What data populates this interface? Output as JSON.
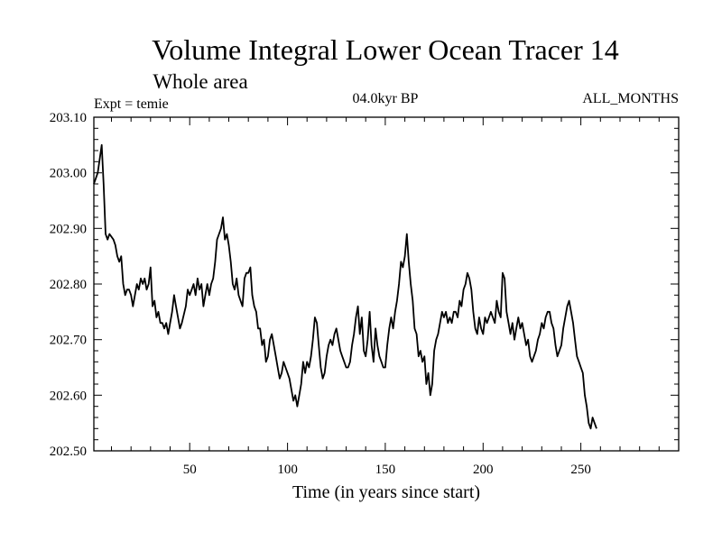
{
  "chart_data": {
    "type": "line",
    "title": "Volume Integral Lower Ocean Tracer 14",
    "subtitle": "Whole area",
    "annotation_left": "Expt = temie",
    "annotation_center": "04.0kyr BP",
    "annotation_right": "ALL_MONTHS",
    "xlabel": "Time (in years since start)",
    "ylabel": "",
    "xlim": [
      1,
      300
    ],
    "ylim": [
      202.5,
      203.1
    ],
    "x_ticks": [
      50,
      100,
      150,
      200,
      250
    ],
    "y_ticks": [
      "202.50",
      "202.60",
      "202.70",
      "202.80",
      "202.90",
      "203.00",
      "203.10"
    ],
    "grid": false,
    "series": [
      {
        "name": "Tracer 14",
        "color": "#000000",
        "points": [
          [
            1,
            202.98
          ],
          [
            3,
            203.0
          ],
          [
            5,
            203.05
          ],
          [
            6,
            202.98
          ],
          [
            7,
            202.89
          ],
          [
            8,
            202.88
          ],
          [
            9,
            202.89
          ],
          [
            11,
            202.88
          ],
          [
            12,
            202.87
          ],
          [
            13,
            202.85
          ],
          [
            14,
            202.84
          ],
          [
            15,
            202.85
          ],
          [
            16,
            202.8
          ],
          [
            17,
            202.78
          ],
          [
            18,
            202.79
          ],
          [
            19,
            202.79
          ],
          [
            20,
            202.78
          ],
          [
            21,
            202.76
          ],
          [
            22,
            202.78
          ],
          [
            23,
            202.8
          ],
          [
            24,
            202.79
          ],
          [
            25,
            202.81
          ],
          [
            26,
            202.8
          ],
          [
            27,
            202.81
          ],
          [
            28,
            202.79
          ],
          [
            29,
            202.8
          ],
          [
            30,
            202.83
          ],
          [
            31,
            202.76
          ],
          [
            32,
            202.77
          ],
          [
            33,
            202.74
          ],
          [
            34,
            202.75
          ],
          [
            35,
            202.73
          ],
          [
            36,
            202.73
          ],
          [
            37,
            202.72
          ],
          [
            38,
            202.73
          ],
          [
            39,
            202.71
          ],
          [
            40,
            202.73
          ],
          [
            41,
            202.75
          ],
          [
            42,
            202.78
          ],
          [
            43,
            202.76
          ],
          [
            44,
            202.74
          ],
          [
            45,
            202.72
          ],
          [
            46,
            202.73
          ],
          [
            48,
            202.76
          ],
          [
            49,
            202.79
          ],
          [
            50,
            202.78
          ],
          [
            51,
            202.79
          ],
          [
            52,
            202.8
          ],
          [
            53,
            202.78
          ],
          [
            54,
            202.81
          ],
          [
            55,
            202.79
          ],
          [
            56,
            202.8
          ],
          [
            57,
            202.76
          ],
          [
            58,
            202.78
          ],
          [
            59,
            202.8
          ],
          [
            60,
            202.78
          ],
          [
            61,
            202.8
          ],
          [
            62,
            202.81
          ],
          [
            63,
            202.84
          ],
          [
            64,
            202.88
          ],
          [
            65,
            202.89
          ],
          [
            66,
            202.9
          ],
          [
            67,
            202.92
          ],
          [
            68,
            202.88
          ],
          [
            69,
            202.89
          ],
          [
            70,
            202.87
          ],
          [
            71,
            202.84
          ],
          [
            72,
            202.8
          ],
          [
            73,
            202.79
          ],
          [
            74,
            202.81
          ],
          [
            75,
            202.78
          ],
          [
            76,
            202.77
          ],
          [
            77,
            202.76
          ],
          [
            78,
            202.81
          ],
          [
            79,
            202.82
          ],
          [
            80,
            202.82
          ],
          [
            81,
            202.83
          ],
          [
            82,
            202.78
          ],
          [
            83,
            202.76
          ],
          [
            84,
            202.75
          ],
          [
            85,
            202.72
          ],
          [
            86,
            202.72
          ],
          [
            87,
            202.69
          ],
          [
            88,
            202.7
          ],
          [
            89,
            202.66
          ],
          [
            90,
            202.67
          ],
          [
            91,
            202.7
          ],
          [
            92,
            202.71
          ],
          [
            93,
            202.69
          ],
          [
            94,
            202.67
          ],
          [
            95,
            202.65
          ],
          [
            96,
            202.63
          ],
          [
            97,
            202.64
          ],
          [
            98,
            202.66
          ],
          [
            99,
            202.65
          ],
          [
            100,
            202.64
          ],
          [
            101,
            202.63
          ],
          [
            102,
            202.61
          ],
          [
            103,
            202.59
          ],
          [
            104,
            202.6
          ],
          [
            105,
            202.58
          ],
          [
            106,
            202.6
          ],
          [
            107,
            202.62
          ],
          [
            108,
            202.66
          ],
          [
            109,
            202.64
          ],
          [
            110,
            202.66
          ],
          [
            111,
            202.65
          ],
          [
            112,
            202.67
          ],
          [
            113,
            202.7
          ],
          [
            114,
            202.74
          ],
          [
            115,
            202.73
          ],
          [
            116,
            202.69
          ],
          [
            117,
            202.65
          ],
          [
            118,
            202.63
          ],
          [
            119,
            202.64
          ],
          [
            120,
            202.67
          ],
          [
            121,
            202.69
          ],
          [
            122,
            202.7
          ],
          [
            123,
            202.69
          ],
          [
            124,
            202.71
          ],
          [
            125,
            202.72
          ],
          [
            126,
            202.7
          ],
          [
            127,
            202.68
          ],
          [
            128,
            202.67
          ],
          [
            129,
            202.66
          ],
          [
            130,
            202.65
          ],
          [
            131,
            202.65
          ],
          [
            132,
            202.66
          ],
          [
            133,
            202.69
          ],
          [
            134,
            202.71
          ],
          [
            135,
            202.74
          ],
          [
            136,
            202.76
          ],
          [
            137,
            202.71
          ],
          [
            138,
            202.74
          ],
          [
            139,
            202.68
          ],
          [
            140,
            202.67
          ],
          [
            141,
            202.7
          ],
          [
            142,
            202.75
          ],
          [
            143,
            202.69
          ],
          [
            144,
            202.66
          ],
          [
            145,
            202.72
          ],
          [
            146,
            202.69
          ],
          [
            147,
            202.67
          ],
          [
            148,
            202.66
          ],
          [
            149,
            202.65
          ],
          [
            150,
            202.65
          ],
          [
            151,
            202.69
          ],
          [
            152,
            202.72
          ],
          [
            153,
            202.74
          ],
          [
            154,
            202.72
          ],
          [
            155,
            202.75
          ],
          [
            156,
            202.77
          ],
          [
            157,
            202.8
          ],
          [
            158,
            202.84
          ],
          [
            159,
            202.83
          ],
          [
            160,
            202.85
          ],
          [
            161,
            202.89
          ],
          [
            162,
            202.84
          ],
          [
            163,
            202.8
          ],
          [
            164,
            202.77
          ],
          [
            165,
            202.72
          ],
          [
            166,
            202.71
          ],
          [
            167,
            202.67
          ],
          [
            168,
            202.68
          ],
          [
            169,
            202.66
          ],
          [
            170,
            202.67
          ],
          [
            171,
            202.62
          ],
          [
            172,
            202.64
          ],
          [
            173,
            202.6
          ],
          [
            174,
            202.62
          ],
          [
            175,
            202.68
          ],
          [
            176,
            202.7
          ],
          [
            177,
            202.71
          ],
          [
            178,
            202.73
          ],
          [
            179,
            202.75
          ],
          [
            180,
            202.74
          ],
          [
            181,
            202.75
          ],
          [
            182,
            202.73
          ],
          [
            183,
            202.74
          ],
          [
            184,
            202.73
          ],
          [
            185,
            202.75
          ],
          [
            186,
            202.75
          ],
          [
            187,
            202.74
          ],
          [
            188,
            202.77
          ],
          [
            189,
            202.76
          ],
          [
            190,
            202.79
          ],
          [
            191,
            202.8
          ],
          [
            192,
            202.82
          ],
          [
            193,
            202.81
          ],
          [
            194,
            202.79
          ],
          [
            195,
            202.75
          ],
          [
            196,
            202.72
          ],
          [
            197,
            202.71
          ],
          [
            198,
            202.74
          ],
          [
            199,
            202.72
          ],
          [
            200,
            202.71
          ],
          [
            201,
            202.74
          ],
          [
            202,
            202.73
          ],
          [
            203,
            202.74
          ],
          [
            204,
            202.75
          ],
          [
            205,
            202.74
          ],
          [
            206,
            202.73
          ],
          [
            207,
            202.77
          ],
          [
            208,
            202.75
          ],
          [
            209,
            202.74
          ],
          [
            210,
            202.82
          ],
          [
            211,
            202.81
          ],
          [
            212,
            202.75
          ],
          [
            213,
            202.73
          ],
          [
            214,
            202.71
          ],
          [
            215,
            202.73
          ],
          [
            216,
            202.7
          ],
          [
            217,
            202.72
          ],
          [
            218,
            202.74
          ],
          [
            219,
            202.72
          ],
          [
            220,
            202.73
          ],
          [
            221,
            202.71
          ],
          [
            222,
            202.69
          ],
          [
            223,
            202.7
          ],
          [
            224,
            202.67
          ],
          [
            225,
            202.66
          ],
          [
            226,
            202.67
          ],
          [
            227,
            202.68
          ],
          [
            228,
            202.7
          ],
          [
            229,
            202.71
          ],
          [
            230,
            202.73
          ],
          [
            231,
            202.72
          ],
          [
            232,
            202.74
          ],
          [
            233,
            202.75
          ],
          [
            234,
            202.75
          ],
          [
            235,
            202.73
          ],
          [
            236,
            202.72
          ],
          [
            237,
            202.69
          ],
          [
            238,
            202.67
          ],
          [
            239,
            202.68
          ],
          [
            240,
            202.69
          ],
          [
            241,
            202.72
          ],
          [
            242,
            202.74
          ],
          [
            243,
            202.76
          ],
          [
            244,
            202.77
          ],
          [
            245,
            202.75
          ],
          [
            246,
            202.73
          ],
          [
            247,
            202.7
          ],
          [
            248,
            202.67
          ],
          [
            249,
            202.66
          ],
          [
            250,
            202.65
          ],
          [
            251,
            202.64
          ],
          [
            252,
            202.6
          ],
          [
            253,
            202.58
          ],
          [
            254,
            202.55
          ],
          [
            255,
            202.54
          ],
          [
            256,
            202.56
          ],
          [
            257,
            202.55
          ],
          [
            258,
            202.54
          ]
        ]
      }
    ]
  }
}
